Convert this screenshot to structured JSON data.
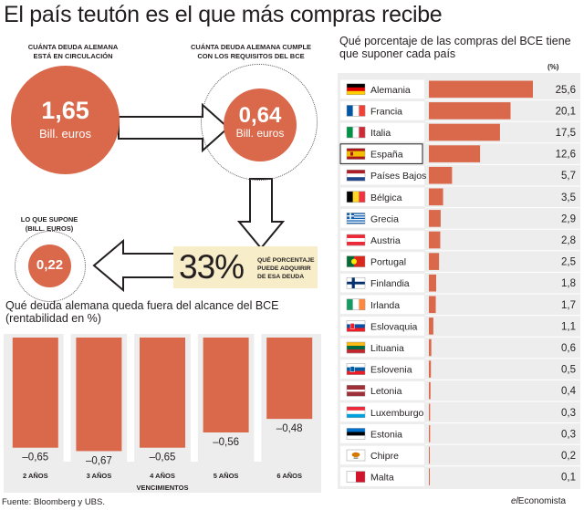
{
  "title": "El país teutón es el que más compras recibe",
  "circulation": {
    "caption": "CUÁNTA DEUDA ALEMANA ESTÁ EN CIRCULACIÓN",
    "value": "1,65",
    "unit": "Bill. euros"
  },
  "eligible": {
    "caption": "CUÁNTA DEUDA ALEMANA CUMPLE CON LOS REQUISITOS DEL BCE",
    "value": "0,64",
    "unit": "Bill. euros"
  },
  "implies": {
    "caption": "LO QUE SUPONE (BILL. EUROS)",
    "value": "0,22"
  },
  "percentage": {
    "value": "33%",
    "caption": "QUÉ PORCENTAJE PUEDE ADQUIRIR DE ESA DEUDA"
  },
  "source": "Fuente: Bloomberg y UBS.",
  "brand": {
    "prefix": "el",
    "name": "Economista"
  },
  "colors": {
    "accent": "#d9694a",
    "highlight": "#f7edc9",
    "panel": "#ededed"
  },
  "chart_data": [
    {
      "type": "bar",
      "orientation": "vertical",
      "title": "Qué deuda alemana queda fuera del alcance del BCE (rentabilidad en %)",
      "xlabel": "VENCIMIENTOS",
      "categories": [
        "2 AÑOS",
        "3 AÑOS",
        "4 AÑOS",
        "5 AÑOS",
        "6 AÑOS"
      ],
      "values": [
        -0.65,
        -0.67,
        -0.65,
        -0.56,
        -0.48
      ],
      "value_labels": [
        "–0,65",
        "–0,67",
        "–0,65",
        "–0,56",
        "–0,48"
      ],
      "ylim": [
        -0.7,
        0
      ],
      "grid": false
    },
    {
      "type": "bar",
      "orientation": "horizontal",
      "title": "Qué porcentaje de las compras del BCE tiene que suponer cada país",
      "unit_label": "(%)",
      "categories": [
        "Alemania",
        "Francia",
        "Italia",
        "España",
        "Países Bajos",
        "Bélgica",
        "Grecia",
        "Austria",
        "Portugal",
        "Finlandia",
        "Irlanda",
        "Eslovaquia",
        "Lituania",
        "Eslovenia",
        "Letonia",
        "Luxemburgo",
        "Estonia",
        "Chipre",
        "Malta"
      ],
      "flags": [
        "de",
        "fr",
        "it",
        "es",
        "nl",
        "be",
        "gr",
        "at",
        "pt",
        "fi",
        "ie",
        "sk",
        "lt",
        "si",
        "lv",
        "lu",
        "ee",
        "cy",
        "mt"
      ],
      "values": [
        25.6,
        20.1,
        17.5,
        12.6,
        5.7,
        3.5,
        2.9,
        2.8,
        2.5,
        1.8,
        1.7,
        1.1,
        0.6,
        0.5,
        0.4,
        0.3,
        0.3,
        0.2,
        0.1
      ],
      "value_labels": [
        "25,6",
        "20,1",
        "17,5",
        "12,6",
        "5,7",
        "3,5",
        "2,9",
        "2,8",
        "2,5",
        "1,8",
        "1,7",
        "1,1",
        "0,6",
        "0,5",
        "0,4",
        "0,3",
        "0,3",
        "0,2",
        "0,1"
      ],
      "highlighted": "España",
      "xlim": [
        0,
        25.6
      ],
      "grid": false
    }
  ]
}
